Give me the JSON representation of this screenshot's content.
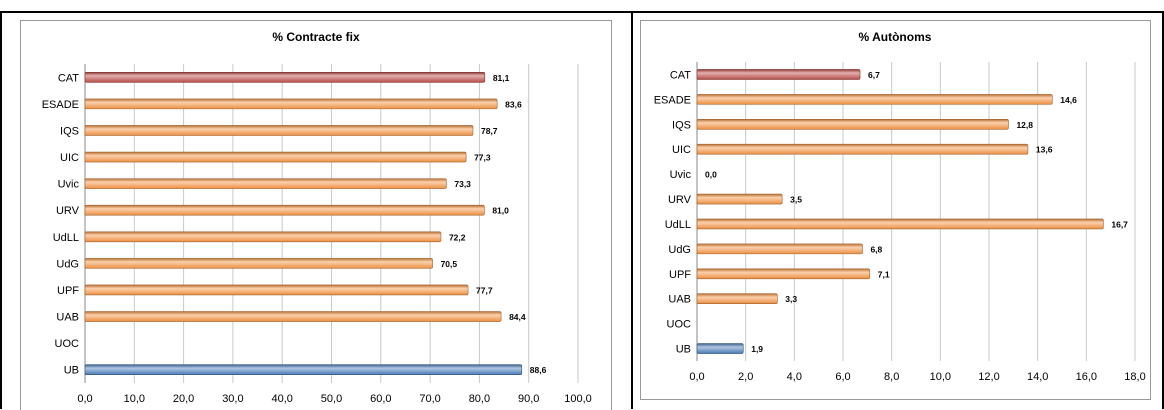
{
  "chart_data": [
    {
      "type": "bar",
      "orientation": "horizontal",
      "title": "% Contracte fix",
      "categories": [
        "CAT",
        "ESADE",
        "IQS",
        "UIC",
        "Uvic",
        "URV",
        "UdLL",
        "UdG",
        "UPF",
        "UAB",
        "UOC",
        "UB"
      ],
      "values": [
        81.1,
        83.6,
        78.7,
        77.3,
        73.3,
        81.0,
        72.2,
        70.5,
        77.7,
        84.4,
        null,
        88.6
      ],
      "data_labels": [
        "81,1",
        "83,6",
        "78,7",
        "77,3",
        "73,3",
        "81,0",
        "72,2",
        "70,5",
        "77,7",
        "84,4",
        "",
        "88,6"
      ],
      "bar_colors": [
        "#c0504d",
        "#f79646",
        "#f79646",
        "#f79646",
        "#f79646",
        "#f79646",
        "#f79646",
        "#f79646",
        "#f79646",
        "#f79646",
        "#f79646",
        "#4f81bd"
      ],
      "xlim": [
        0,
        100
      ],
      "xticks": [
        "0,0",
        "10,0",
        "20,0",
        "30,0",
        "40,0",
        "50,0",
        "60,0",
        "70,0",
        "80,0",
        "90,0",
        "100,0"
      ],
      "grid": true
    },
    {
      "type": "bar",
      "orientation": "horizontal",
      "title": "% Autònoms",
      "categories": [
        "CAT",
        "ESADE",
        "IQS",
        "UIC",
        "Uvic",
        "URV",
        "UdLL",
        "UdG",
        "UPF",
        "UAB",
        "UOC",
        "UB"
      ],
      "values": [
        6.7,
        14.6,
        12.8,
        13.6,
        0.0,
        3.5,
        16.7,
        6.8,
        7.1,
        3.3,
        null,
        1.9
      ],
      "data_labels": [
        "6,7",
        "14,6",
        "12,8",
        "13,6",
        "0,0",
        "3,5",
        "16,7",
        "6,8",
        "7,1",
        "3,3",
        "",
        "1,9"
      ],
      "bar_colors": [
        "#c0504d",
        "#f79646",
        "#f79646",
        "#f79646",
        "#f79646",
        "#f79646",
        "#f79646",
        "#f79646",
        "#f79646",
        "#f79646",
        "#f79646",
        "#4f81bd"
      ],
      "xlim": [
        0,
        18
      ],
      "xticks": [
        "0,0",
        "2,0",
        "4,0",
        "6,0",
        "8,0",
        "10,0",
        "12,0",
        "14,0",
        "16,0",
        "18,0"
      ],
      "grid": true
    }
  ]
}
